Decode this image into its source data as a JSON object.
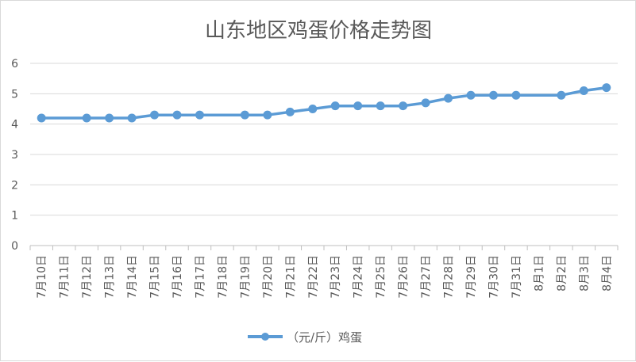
{
  "chart_data": {
    "type": "line",
    "title": "山东地区鸡蛋价格走势图",
    "xlabel": "",
    "ylabel": "",
    "categories": [
      "7月10日",
      "7月11日",
      "7月12日",
      "7月13日",
      "7月14日",
      "7月15日",
      "7月16日",
      "7月17日",
      "7月18日",
      "7月19日",
      "7月20日",
      "7月21日",
      "7月22日",
      "7月23日",
      "7月24日",
      "7月25日",
      "7月26日",
      "7月27日",
      "7月28日",
      "7月29日",
      "7月30日",
      "7月31日",
      "8月1日",
      "8月2日",
      "8月3日",
      "8月4日"
    ],
    "series": [
      {
        "name": "（元/斤）鸡蛋",
        "values": [
          4.2,
          null,
          4.2,
          4.2,
          4.2,
          4.3,
          4.3,
          4.3,
          null,
          4.3,
          4.3,
          4.4,
          4.5,
          4.6,
          4.6,
          4.6,
          4.6,
          4.7,
          4.85,
          4.95,
          4.95,
          4.95,
          null,
          4.95,
          5.1,
          5.2
        ],
        "color": "#5b9bd5"
      }
    ],
    "ylim": [
      0,
      6
    ],
    "yticks": [
      0,
      1,
      2,
      3,
      4,
      5,
      6
    ],
    "grid": true,
    "legend_position": "bottom"
  }
}
